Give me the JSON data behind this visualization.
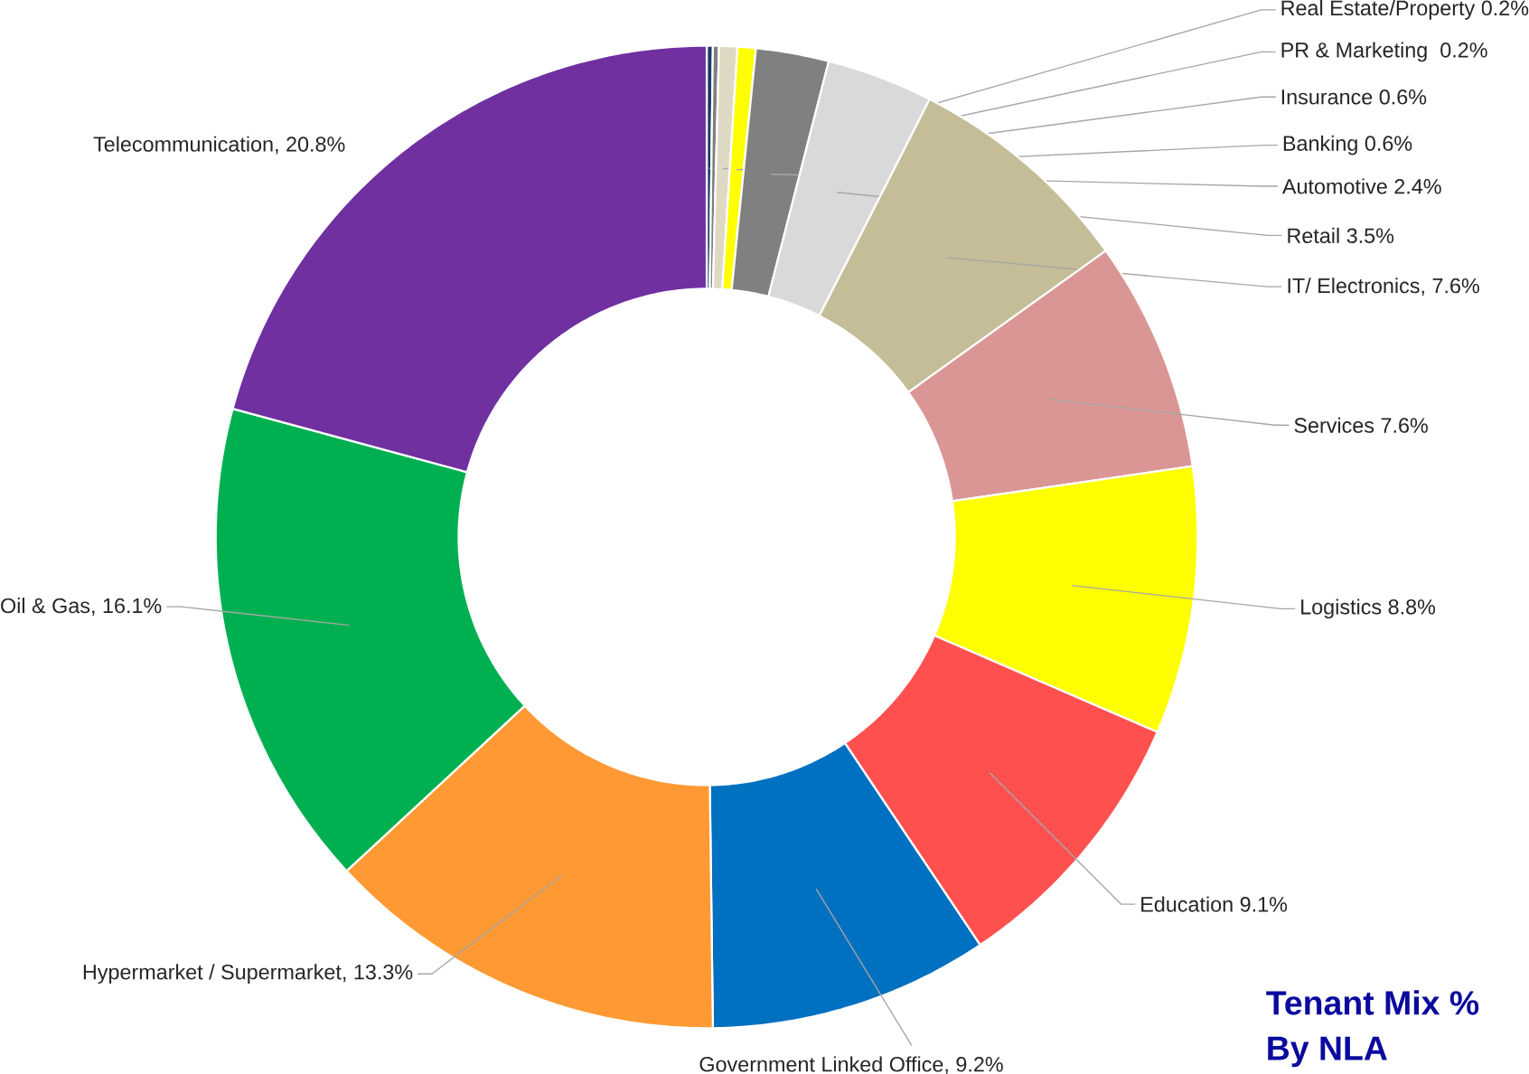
{
  "chart_data": {
    "type": "donut",
    "title": "Tenant Mix %",
    "subtitle": "By NLA",
    "categories": [
      "Real Estate/Property",
      "PR & Marketing ",
      "Insurance",
      "Banking",
      "Automotive",
      "Retail",
      "IT/ Electronics",
      "Services",
      "Logistics",
      "Education",
      "Government Linked Office",
      "Hypermarket / Supermarket",
      "Oil & Gas",
      "Telecommunication"
    ],
    "values": [
      0.2,
      0.2,
      0.6,
      0.6,
      2.4,
      3.5,
      7.6,
      7.6,
      8.8,
      9.1,
      9.2,
      13.3,
      16.1,
      20.8
    ],
    "value_labels": [
      "0.2%",
      "0.2%",
      "0.6%",
      "0.6%",
      "2.4%",
      "3.5%",
      ", 7.6%",
      "7.6%",
      "8.8%",
      "9.1%",
      ", 9.2%",
      ", 13.3%",
      ", 16.1%",
      ", 20.8%"
    ],
    "colors": [
      "#1f3864",
      "#7f7f7f",
      "#ddd9c3",
      "#ffff00",
      "#808080",
      "#d9d9d9",
      "#c4bd97",
      "#da9694",
      "#ffff00",
      "#ff5050",
      "#0070c0",
      "#ff9933",
      "#00b050",
      "#7030a0"
    ]
  }
}
